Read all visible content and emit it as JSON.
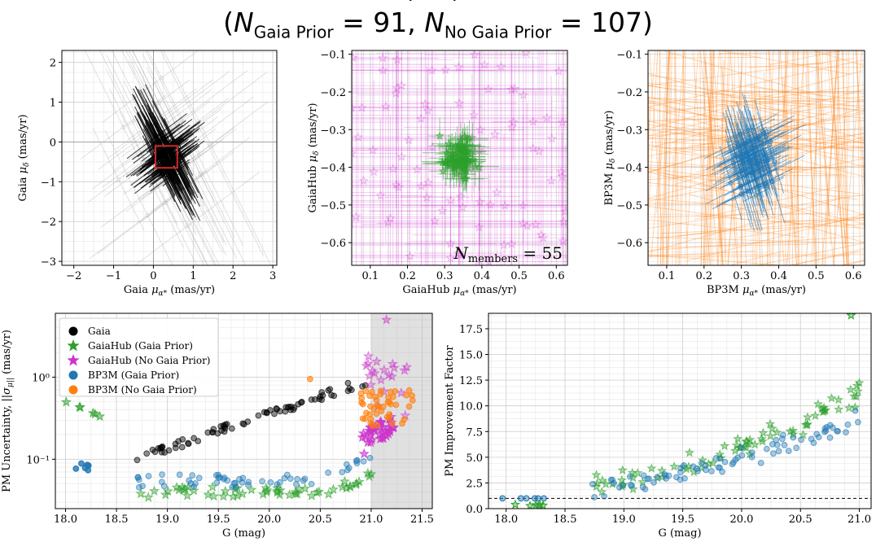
{
  "title": {
    "line1": "…, …, …",
    "line2_prefix": "(",
    "n_gaia_prior_label": "Gaia Prior",
    "n_gaia_prior_value": "91",
    "n_no_gaia_prior_label": "No Gaia Prior",
    "n_no_gaia_prior_value": "107",
    "line2_suffix": ")"
  },
  "chart_data": [
    {
      "id": "gaia-pm",
      "type": "scatter",
      "xlabel": "Gaia μα* (mas/yr)",
      "ylabel": "Gaia μδ (mas/yr)",
      "xlim": [
        -2.3,
        3.1
      ],
      "ylim": [
        -3.1,
        2.3
      ],
      "xticks": [
        -2,
        -1,
        0,
        1,
        2,
        3
      ],
      "yticks": [
        -3,
        -2,
        -1,
        0,
        1,
        2
      ],
      "grid": true,
      "zoom_box": {
        "x": [
          0.05,
          0.6
        ],
        "y": [
          -0.65,
          -0.1
        ],
        "color": "#d62728"
      },
      "series": [
        {
          "color": "#000000",
          "center": [
            0.35,
            -0.38
          ]
        },
        {
          "color": "#aaaaaa",
          "center": [
            0.4,
            -0.5
          ]
        }
      ]
    },
    {
      "id": "gaiahub-pm",
      "type": "scatter",
      "xlabel": "GaiaHub μα* (mas/yr)",
      "ylabel": "GaiaHub μδ (mas/yr)",
      "xlim": [
        0.05,
        0.63
      ],
      "ylim": [
        -0.66,
        -0.09
      ],
      "xticks": [
        0.1,
        0.2,
        0.3,
        0.4,
        0.5,
        0.6
      ],
      "yticks": [
        -0.6,
        -0.5,
        -0.4,
        -0.3,
        -0.2,
        -0.1
      ],
      "grid": true,
      "annotation": "N_members = 55",
      "series": [
        {
          "color": "#2ca02c",
          "marker": "star",
          "center": [
            0.34,
            -0.38
          ]
        },
        {
          "color": "#cc33cc",
          "marker": "star",
          "center": [
            0.3,
            -0.35
          ]
        }
      ]
    },
    {
      "id": "bp3m-pm",
      "type": "scatter",
      "xlabel": "BP3M μα* (mas/yr)",
      "ylabel": "BP3M μδ (mas/yr)",
      "xlim": [
        0.05,
        0.63
      ],
      "ylim": [
        -0.66,
        -0.09
      ],
      "xticks": [
        0.1,
        0.2,
        0.3,
        0.4,
        0.5,
        0.6
      ],
      "yticks": [
        -0.6,
        -0.5,
        -0.4,
        -0.3,
        -0.2,
        -0.1
      ],
      "grid": true,
      "series": [
        {
          "color": "#1f77b4",
          "center": [
            0.33,
            -0.38
          ]
        },
        {
          "color": "#ff7f0e",
          "center": [
            0.33,
            -0.37
          ]
        }
      ]
    },
    {
      "id": "pm-uncertainty",
      "type": "scatter",
      "xlabel": "G (mag)",
      "ylabel": "PM Uncertainty, ||σμ|| (mas/yr)",
      "xlim": [
        17.9,
        21.6
      ],
      "ylim": [
        0.025,
        6.0
      ],
      "yscale": "log",
      "xticks": [
        18.0,
        18.5,
        19.0,
        19.5,
        20.0,
        20.5,
        21.0,
        21.5
      ],
      "yticks": [
        0.1,
        1.0
      ],
      "grid": true,
      "shaded_region": {
        "x": [
          21.0,
          21.6
        ],
        "color": "#bbbbbb"
      },
      "legend_position": "top-left",
      "series": [
        {
          "name": "Gaia",
          "color": "#000000",
          "marker": "circle"
        },
        {
          "name": "GaiaHub (Gaia Prior)",
          "color": "#2ca02c",
          "marker": "star"
        },
        {
          "name": "GaiaHub (No Gaia Prior)",
          "color": "#cc33cc",
          "marker": "star"
        },
        {
          "name": "BP3M (Gaia Prior)",
          "color": "#1f77b4",
          "marker": "circle"
        },
        {
          "name": "BP3M (No Gaia Prior)",
          "color": "#ff7f0e",
          "marker": "circle"
        }
      ]
    },
    {
      "id": "pm-improvement",
      "type": "scatter",
      "xlabel": "G (mag)",
      "ylabel": "PM Improvement Factor",
      "xlim": [
        17.85,
        21.1
      ],
      "ylim": [
        0,
        19
      ],
      "xticks": [
        18.0,
        18.5,
        19.0,
        19.5,
        20.0,
        20.5,
        21.0
      ],
      "yticks": [
        0.0,
        2.5,
        5.0,
        7.5,
        10.0,
        12.5,
        15.0,
        17.5
      ],
      "grid": true,
      "reference_line": {
        "y": 1.0,
        "style": "dashed"
      },
      "series": [
        {
          "color": "#2ca02c",
          "marker": "star"
        },
        {
          "color": "#1f77b4",
          "marker": "circle"
        }
      ]
    }
  ]
}
